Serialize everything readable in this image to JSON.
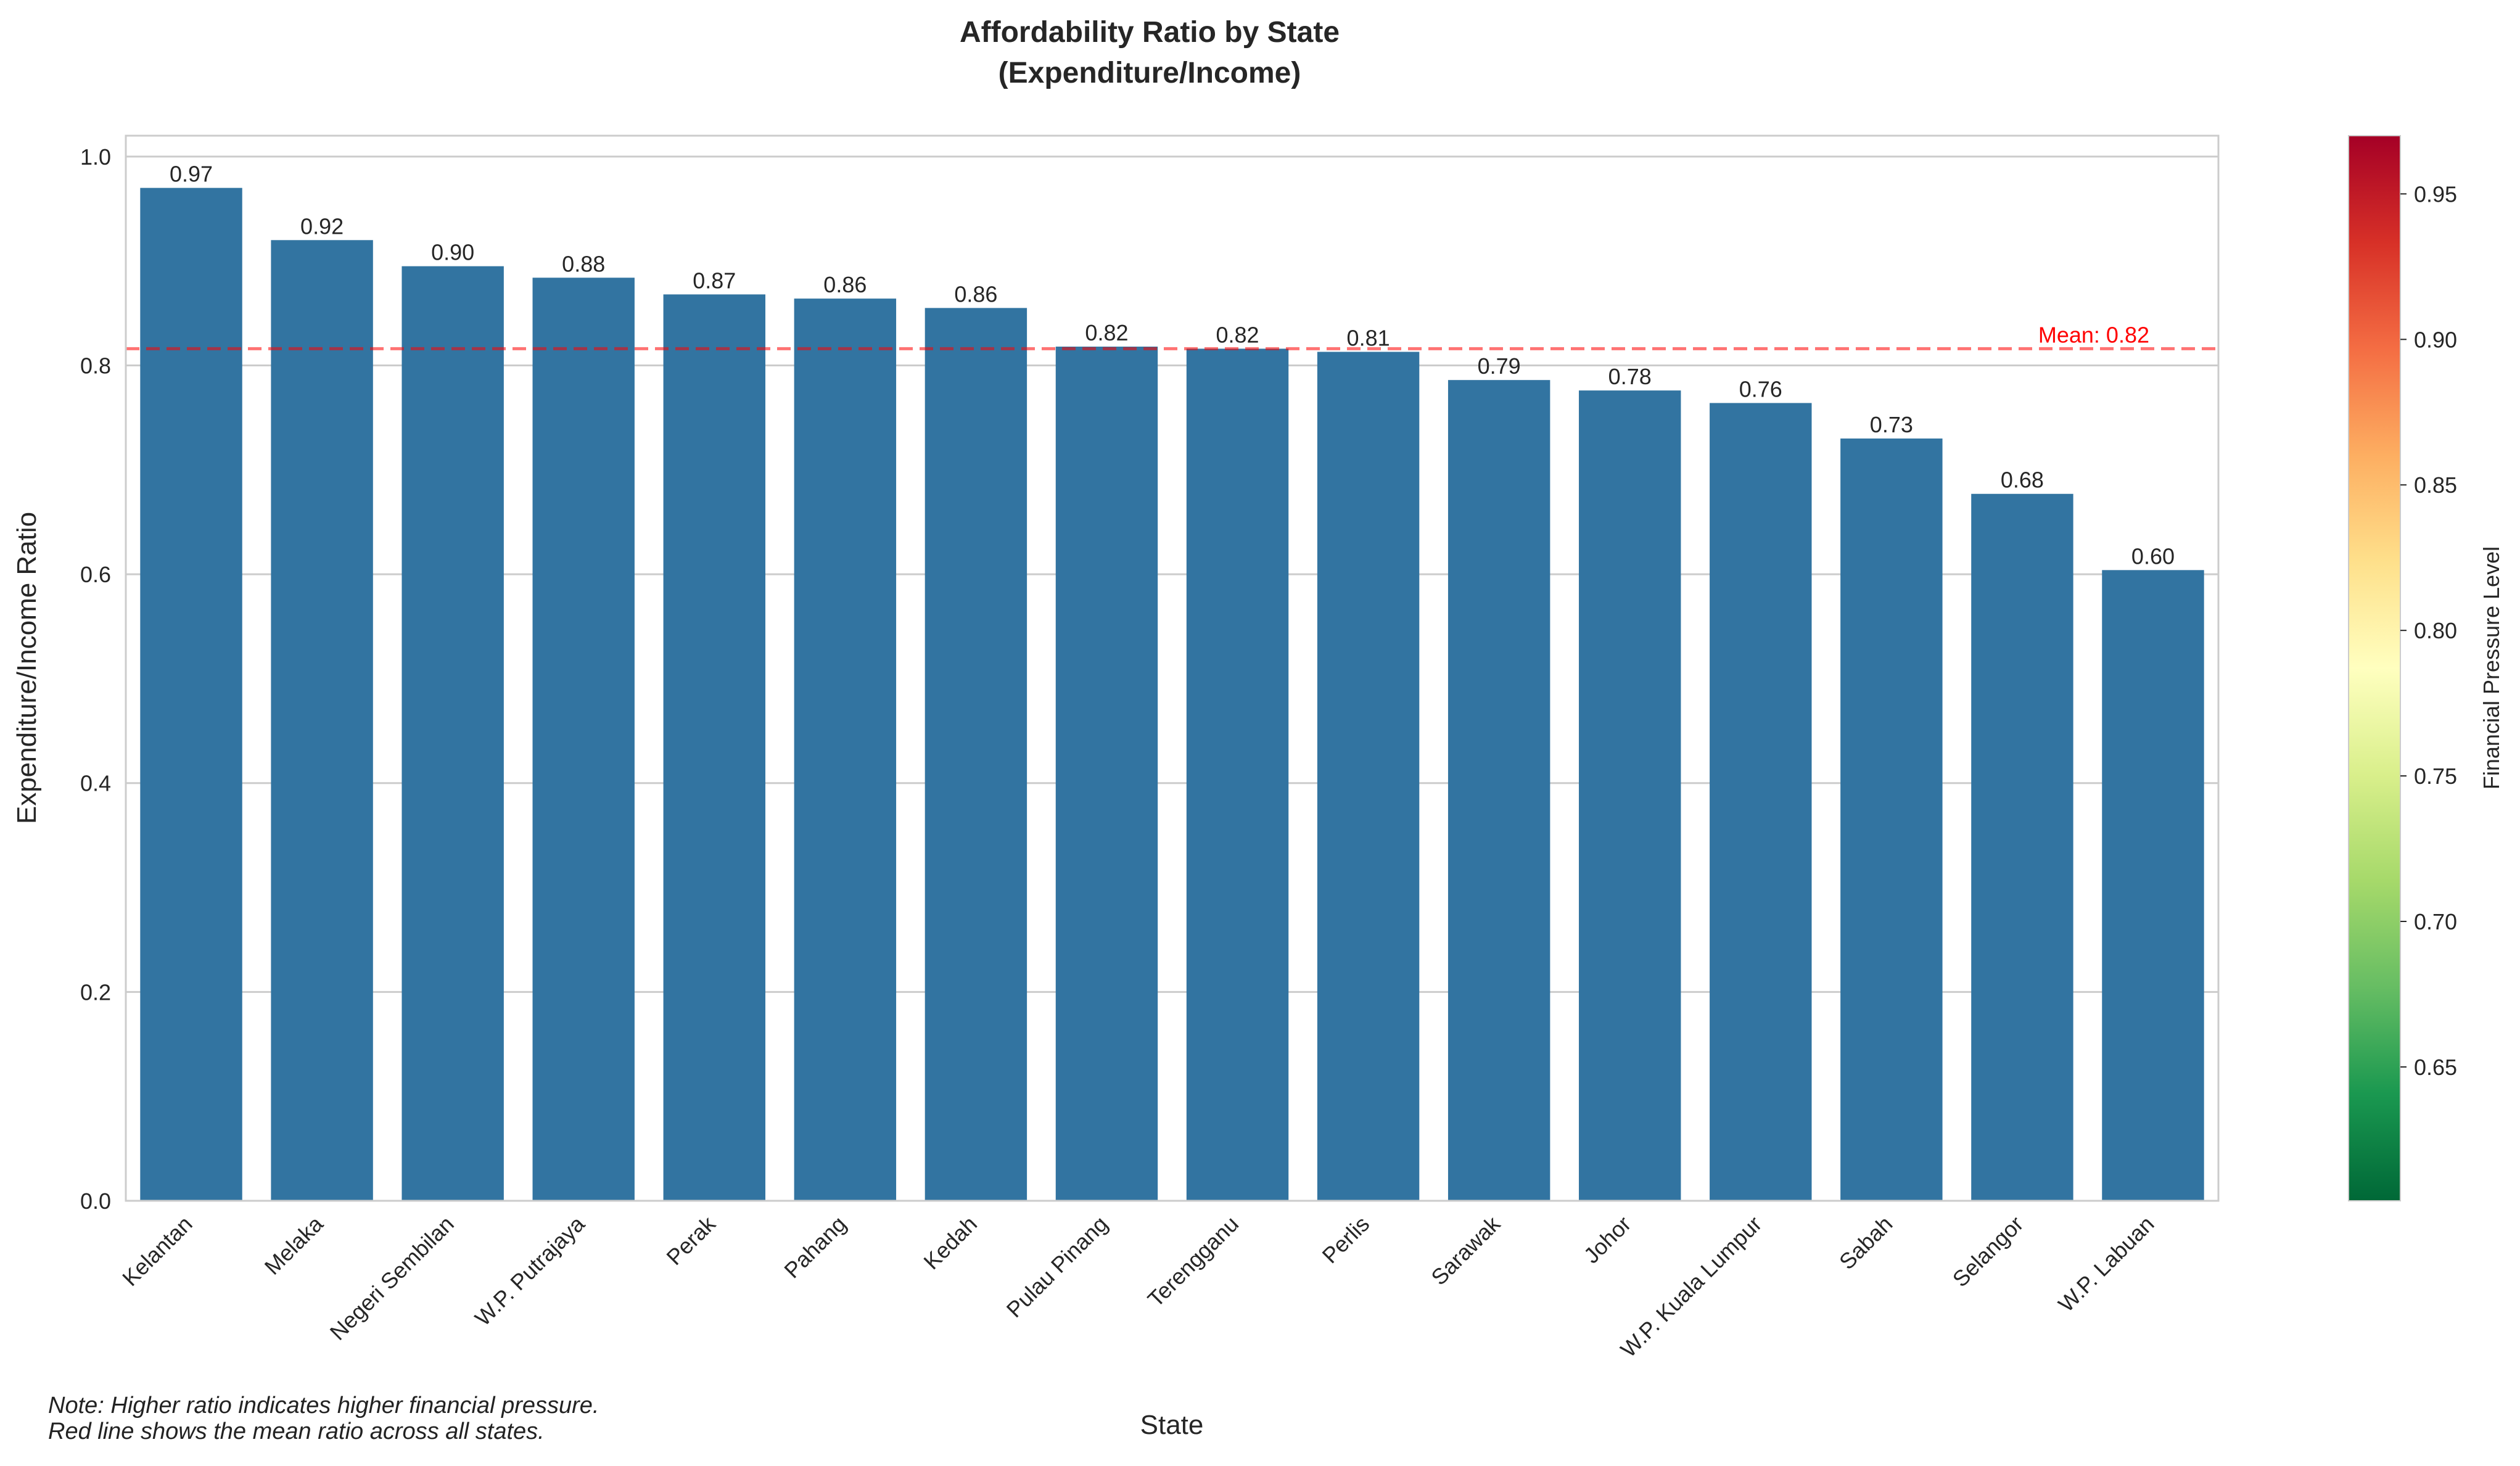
{
  "chart_data": {
    "type": "bar",
    "title": "Affordability Ratio by State",
    "subtitle": "(Expenditure/Income)",
    "xlabel": "State",
    "ylabel": "Expenditure/Income Ratio",
    "categories": [
      "Kelantan",
      "Melaka",
      "Negeri Sembilan",
      "W.P. Putrajaya",
      "Perak",
      "Pahang",
      "Kedah",
      "Pulau Pinang",
      "Terengganu",
      "Perlis",
      "Sarawak",
      "Johor",
      "W.P. Kuala Lumpur",
      "Sabah",
      "Selangor",
      "W.P. Labuan"
    ],
    "values": [
      0.97,
      0.92,
      0.895,
      0.884,
      0.868,
      0.864,
      0.855,
      0.818,
      0.816,
      0.813,
      0.786,
      0.776,
      0.764,
      0.73,
      0.677,
      0.604
    ],
    "value_labels": [
      "0.97",
      "0.92",
      "0.90",
      "0.88",
      "0.87",
      "0.86",
      "0.86",
      "0.82",
      "0.82",
      "0.81",
      "0.79",
      "0.78",
      "0.76",
      "0.73",
      "0.68",
      "0.60"
    ],
    "ylim": [
      0,
      1.02
    ],
    "yticks": [
      0.0,
      0.2,
      0.4,
      0.6,
      0.8,
      1.0
    ],
    "ytick_labels": [
      "0.0",
      "0.2",
      "0.4",
      "0.6",
      "0.8",
      "1.0"
    ],
    "bar_color": "#3274a1",
    "grid": true,
    "mean": {
      "value": 0.816,
      "label": "Mean: 0.82",
      "color": "#ff0000"
    },
    "colorbar": {
      "label": "Financial Pressure Level",
      "range": [
        0.604,
        0.97
      ],
      "ticks": [
        0.65,
        0.7,
        0.75,
        0.8,
        0.85,
        0.9,
        0.95
      ],
      "tick_labels": [
        "0.65",
        "0.70",
        "0.75",
        "0.80",
        "0.85",
        "0.90",
        "0.95"
      ],
      "colormap": "RdYlGn_r"
    }
  },
  "note": {
    "line1": "Note: Higher ratio indicates higher financial pressure.",
    "line2": "Red line shows the mean ratio across all states."
  }
}
